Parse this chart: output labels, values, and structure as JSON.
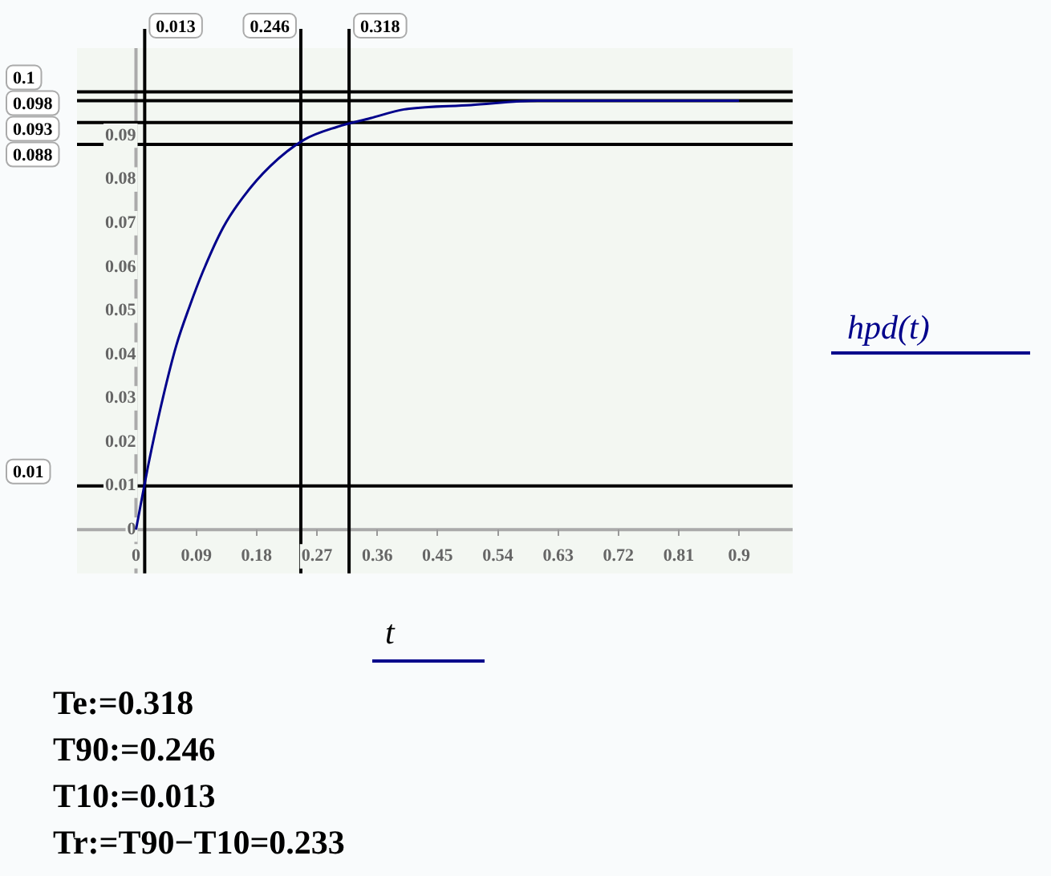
{
  "chart_data": {
    "type": "line",
    "x": [
      0,
      0.02,
      0.04,
      0.06,
      0.08,
      0.1,
      0.13,
      0.16,
      0.2,
      0.25,
      0.3,
      0.35,
      0.4,
      0.5,
      0.6,
      0.7,
      0.8,
      0.9
    ],
    "series": [
      {
        "name": "hpd(t)",
        "color": "#00008b",
        "values": [
          0,
          0.016,
          0.03,
          0.042,
          0.051,
          0.059,
          0.069,
          0.076,
          0.083,
          0.089,
          0.092,
          0.094,
          0.096,
          0.097,
          0.098,
          0.098,
          0.098,
          0.098
        ]
      }
    ],
    "xlabel": "t",
    "xlim": [
      -0.088,
      0.98
    ],
    "xticks": [
      0,
      0.09,
      0.18,
      0.27,
      0.36,
      0.45,
      0.54,
      0.63,
      0.72,
      0.81,
      0.9
    ],
    "ylim": [
      -0.01,
      0.11
    ],
    "yticks": [
      0,
      0.01,
      0.02,
      0.03,
      0.04,
      0.05,
      0.06,
      0.07,
      0.08,
      0.09
    ],
    "ref_lines": [
      {
        "axis": "x",
        "value": 0.013,
        "label": "0.013"
      },
      {
        "axis": "x",
        "value": 0.246,
        "label": "0.246"
      },
      {
        "axis": "x",
        "value": 0.318,
        "label": "0.318"
      },
      {
        "axis": "y",
        "value": 0.01,
        "label": "0.01"
      },
      {
        "axis": "y",
        "value": 0.088,
        "label": "0.088"
      },
      {
        "axis": "y",
        "value": 0.093,
        "label": "0.093"
      },
      {
        "axis": "y",
        "value": 0.098,
        "label": "0.098"
      },
      {
        "axis": "y",
        "value": 0.1,
        "label": "0.1"
      }
    ],
    "legend": "right",
    "marker": "none",
    "line_style": "solid",
    "annotations": [
      "Te:=0.318",
      "T90:=0.246",
      "T10:=0.013",
      "Tr:=T90−T10=0.233"
    ]
  }
}
